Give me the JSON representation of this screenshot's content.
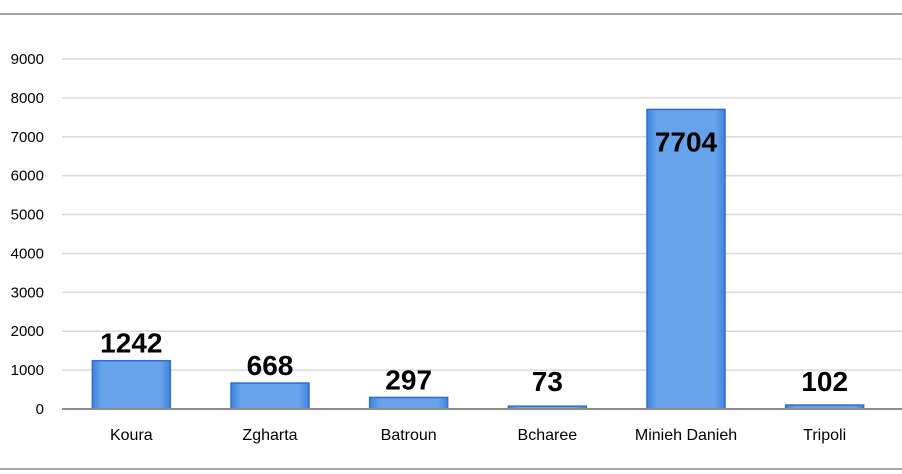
{
  "chart_data": {
    "type": "bar",
    "categories": [
      "Koura",
      "Zgharta",
      "Batroun",
      "Bcharee",
      "Minieh Danieh",
      "Tripoli"
    ],
    "values": [
      1242,
      668,
      297,
      73,
      7704,
      102
    ],
    "data_labels": [
      "1242",
      "668",
      "297",
      "73",
      "7704",
      "102"
    ],
    "title": "",
    "xlabel": "",
    "ylabel": "",
    "ylim": [
      0,
      9000
    ],
    "yticks": [
      "0",
      "1000",
      "2000",
      "3000",
      "4000",
      "5000",
      "6000",
      "7000",
      "8000",
      "9000"
    ],
    "grid": true,
    "legend": "none",
    "colors": {
      "bar_fill": "#6aa6ec",
      "bar_edge": "#2e6fd1",
      "grid": "#d9d9d9",
      "axis": "#8c8c8c",
      "frame": "#a6a6a6"
    }
  }
}
